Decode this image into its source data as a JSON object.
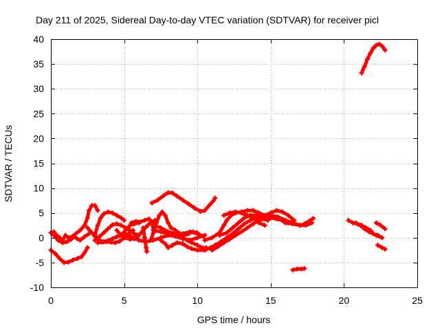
{
  "chart_data": {
    "type": "scatter",
    "title": "Day 211 of 2025, Sidereal Day-to-day VTEC variation (SDTVAR) for receiver picl",
    "xlabel": "GPS time / hours",
    "ylabel": "SDTVAR / TECUs",
    "xlim": [
      0,
      25
    ],
    "ylim": [
      -10,
      40
    ],
    "xticks": [
      0,
      5,
      10,
      15,
      20,
      25
    ],
    "yticks": [
      -10,
      -5,
      0,
      5,
      10,
      15,
      20,
      25,
      30,
      35,
      40
    ],
    "grid": true,
    "legend": "none",
    "marker_color": "#ff0000",
    "series": [
      {
        "points": [
          [
            0.0,
            -2.5
          ],
          [
            0.3,
            -3.2
          ],
          [
            0.6,
            -4.2
          ],
          [
            0.9,
            -5.0
          ],
          [
            1.2,
            -4.9
          ],
          [
            1.5,
            -4.5
          ],
          [
            1.8,
            -4.2
          ],
          [
            2.1,
            -3.8
          ],
          [
            2.3,
            -3.0
          ],
          [
            2.5,
            -2.0
          ]
        ]
      },
      {
        "points": [
          [
            0.0,
            1.0
          ],
          [
            0.2,
            1.2
          ],
          [
            0.4,
            0.5
          ],
          [
            0.6,
            0.0
          ],
          [
            0.8,
            -0.5
          ],
          [
            1.0,
            0.5
          ],
          [
            1.2,
            0.0
          ],
          [
            1.5,
            0.3
          ],
          [
            1.8,
            -0.2
          ],
          [
            2.0,
            -0.5
          ],
          [
            2.3,
            0.2
          ],
          [
            2.6,
            0.8
          ]
        ]
      },
      {
        "points": [
          [
            0.2,
            0.5
          ],
          [
            0.5,
            -0.5
          ],
          [
            0.8,
            -1.0
          ],
          [
            1.1,
            -0.8
          ],
          [
            1.4,
            -0.3
          ],
          [
            1.7,
            0.8
          ],
          [
            2.0,
            1.5
          ],
          [
            2.3,
            2.5
          ],
          [
            2.5,
            4.0
          ],
          [
            2.6,
            5.5
          ],
          [
            2.8,
            6.5
          ],
          [
            3.0,
            6.5
          ],
          [
            3.2,
            5.5
          ]
        ]
      },
      {
        "points": [
          [
            2.5,
            2.0
          ],
          [
            2.8,
            1.0
          ],
          [
            3.0,
            0.3
          ],
          [
            3.3,
            -0.5
          ],
          [
            3.6,
            -0.8
          ],
          [
            3.9,
            -0.6
          ],
          [
            4.2,
            -0.2
          ],
          [
            4.5,
            0.2
          ],
          [
            4.8,
            0.5
          ],
          [
            5.1,
            1.5
          ],
          [
            5.4,
            2.5
          ],
          [
            5.7,
            2.8
          ],
          [
            6.0,
            3.0
          ]
        ]
      },
      {
        "points": [
          [
            3.0,
            0.5
          ],
          [
            3.2,
            2.5
          ],
          [
            3.4,
            4.0
          ],
          [
            3.6,
            4.8
          ],
          [
            3.9,
            5.2
          ],
          [
            4.2,
            5.0
          ],
          [
            4.5,
            4.5
          ],
          [
            4.8,
            4.0
          ],
          [
            5.0,
            3.5
          ]
        ]
      },
      {
        "points": [
          [
            3.0,
            -0.5
          ],
          [
            3.3,
            0.2
          ],
          [
            3.6,
            1.0
          ],
          [
            3.9,
            1.8
          ],
          [
            4.2,
            2.6
          ],
          [
            4.5,
            2.8
          ],
          [
            4.8,
            2.5
          ],
          [
            5.1,
            2.0
          ],
          [
            5.4,
            1.5
          ],
          [
            5.7,
            0.8
          ],
          [
            6.0,
            0.5
          ]
        ]
      },
      {
        "points": [
          [
            3.2,
            -1.0
          ],
          [
            3.5,
            -0.9
          ],
          [
            3.8,
            -0.8
          ],
          [
            4.1,
            -0.9
          ],
          [
            4.4,
            -1.0
          ],
          [
            4.7,
            -0.7
          ],
          [
            5.0,
            0.0
          ],
          [
            5.3,
            0.8
          ],
          [
            5.6,
            1.5
          ]
        ]
      },
      {
        "points": [
          [
            4.5,
            1.5
          ],
          [
            4.8,
            0.5
          ],
          [
            5.1,
            0.0
          ],
          [
            5.4,
            -0.3
          ],
          [
            5.7,
            -0.2
          ],
          [
            6.0,
            0.5
          ],
          [
            6.3,
            1.5
          ],
          [
            6.6,
            2.5
          ],
          [
            6.9,
            3.2
          ],
          [
            7.1,
            3.5
          ]
        ]
      },
      {
        "points": [
          [
            5.5,
            3.0
          ],
          [
            5.8,
            3.3
          ],
          [
            6.1,
            3.2
          ],
          [
            6.4,
            3.5
          ],
          [
            6.7,
            3.8
          ],
          [
            6.9,
            3.0
          ],
          [
            7.0,
            1.5
          ]
        ]
      },
      {
        "points": [
          [
            6.3,
            2.0
          ],
          [
            6.4,
            0.0
          ],
          [
            6.5,
            -2.0
          ],
          [
            6.55,
            -2.8
          ]
        ]
      },
      {
        "points": [
          [
            6.8,
            -0.5
          ],
          [
            7.0,
            1.0
          ],
          [
            7.2,
            3.0
          ],
          [
            7.4,
            4.5
          ],
          [
            7.6,
            5.2
          ],
          [
            7.8,
            4.5
          ],
          [
            8.0,
            3.0
          ],
          [
            8.2,
            2.0
          ],
          [
            8.5,
            1.5
          ],
          [
            8.8,
            0.8
          ],
          [
            9.1,
            0.5
          ],
          [
            9.4,
            0.8
          ],
          [
            9.7,
            1.2
          ],
          [
            10.0,
            1.0
          ]
        ]
      },
      {
        "points": [
          [
            5.0,
            1.0
          ],
          [
            5.5,
            0.2
          ],
          [
            6.0,
            -0.5
          ],
          [
            6.5,
            -0.8
          ],
          [
            7.0,
            -0.5
          ],
          [
            7.5,
            0.0
          ],
          [
            8.0,
            0.5
          ],
          [
            8.5,
            0.3
          ],
          [
            9.0,
            -0.2
          ],
          [
            9.5,
            -0.5
          ],
          [
            10.0,
            0.0
          ],
          [
            10.5,
            0.5
          ]
        ]
      },
      {
        "points": [
          [
            7.5,
            -0.5
          ],
          [
            7.8,
            -1.2
          ],
          [
            8.0,
            -2.0
          ],
          [
            8.3,
            -1.5
          ],
          [
            8.6,
            -1.0
          ],
          [
            9.0,
            -1.2
          ],
          [
            9.3,
            -1.8
          ],
          [
            9.6,
            -2.2
          ],
          [
            10.0,
            -2.5
          ],
          [
            10.5,
            -2.5
          ],
          [
            10.9,
            -2.0
          ],
          [
            11.2,
            -1.5
          ]
        ]
      },
      {
        "points": [
          [
            7.0,
            1.5
          ],
          [
            7.5,
            1.2
          ],
          [
            8.0,
            0.8
          ],
          [
            8.5,
            0.5
          ],
          [
            9.0,
            0.0
          ],
          [
            9.3,
            -0.5
          ],
          [
            9.6,
            -1.0
          ],
          [
            10.0,
            -1.5
          ],
          [
            10.3,
            -2.0
          ],
          [
            10.6,
            -2.0
          ]
        ]
      },
      {
        "points": [
          [
            7.0,
            2.5
          ],
          [
            7.5,
            2.0
          ],
          [
            8.0,
            1.2
          ],
          [
            8.5,
            0.8
          ],
          [
            9.0,
            0.8
          ],
          [
            9.5,
            1.2
          ],
          [
            10.0,
            0.8
          ],
          [
            10.4,
            0.3
          ]
        ]
      },
      {
        "points": [
          [
            6.9,
            7.0
          ],
          [
            7.3,
            7.6
          ],
          [
            7.7,
            8.5
          ],
          [
            8.0,
            9.1
          ],
          [
            8.3,
            9.0
          ],
          [
            8.6,
            8.4
          ],
          [
            9.0,
            7.6
          ],
          [
            9.4,
            6.8
          ],
          [
            9.8,
            6.0
          ],
          [
            10.2,
            5.3
          ],
          [
            10.5,
            5.5
          ],
          [
            10.8,
            6.5
          ],
          [
            11.1,
            7.5
          ],
          [
            11.2,
            8.0
          ]
        ]
      },
      {
        "points": [
          [
            10.5,
            -0.5
          ],
          [
            11.0,
            0.0
          ],
          [
            11.5,
            1.0
          ],
          [
            11.8,
            2.5
          ],
          [
            12.0,
            3.5
          ],
          [
            12.3,
            4.5
          ],
          [
            12.6,
            5.0
          ],
          [
            13.0,
            5.2
          ],
          [
            13.4,
            5.5
          ],
          [
            13.8,
            5.5
          ],
          [
            14.2,
            5.0
          ],
          [
            14.6,
            4.5
          ],
          [
            15.0,
            5.0
          ],
          [
            15.4,
            5.5
          ],
          [
            15.8,
            5.2
          ],
          [
            16.2,
            4.5
          ],
          [
            16.6,
            3.5
          ]
        ]
      },
      {
        "points": [
          [
            11.0,
            -2.5
          ],
          [
            11.4,
            -1.8
          ],
          [
            11.8,
            -1.0
          ],
          [
            12.2,
            -0.3
          ],
          [
            12.6,
            0.5
          ],
          [
            13.0,
            1.2
          ],
          [
            13.4,
            2.0
          ],
          [
            13.8,
            2.8
          ],
          [
            14.2,
            3.5
          ],
          [
            14.6,
            3.8
          ],
          [
            15.0,
            4.0
          ],
          [
            15.4,
            3.8
          ],
          [
            15.8,
            3.5
          ],
          [
            16.2,
            3.0
          ]
        ]
      },
      {
        "points": [
          [
            11.2,
            -1.5
          ],
          [
            11.6,
            -0.8
          ],
          [
            12.0,
            0.0
          ],
          [
            12.4,
            0.8
          ],
          [
            12.8,
            1.8
          ],
          [
            13.2,
            2.8
          ],
          [
            13.6,
            3.5
          ],
          [
            14.0,
            4.0
          ],
          [
            14.4,
            4.3
          ],
          [
            14.8,
            4.0
          ]
        ]
      },
      {
        "points": [
          [
            11.5,
            0.5
          ],
          [
            12.0,
            1.0
          ],
          [
            12.4,
            2.0
          ],
          [
            12.8,
            3.0
          ],
          [
            13.2,
            4.0
          ],
          [
            13.6,
            4.5
          ],
          [
            14.0,
            4.5
          ],
          [
            14.4,
            4.0
          ],
          [
            14.8,
            3.5
          ]
        ]
      },
      {
        "points": [
          [
            11.8,
            4.5
          ],
          [
            12.2,
            5.0
          ],
          [
            12.6,
            5.2
          ],
          [
            13.0,
            5.0
          ],
          [
            13.4,
            4.5
          ],
          [
            13.8,
            4.0
          ],
          [
            14.2,
            3.0
          ],
          [
            14.6,
            2.5
          ]
        ]
      },
      {
        "points": [
          [
            14.5,
            4.0
          ],
          [
            15.0,
            4.5
          ],
          [
            15.5,
            4.2
          ],
          [
            16.0,
            3.5
          ],
          [
            16.5,
            3.0
          ],
          [
            17.0,
            2.5
          ],
          [
            17.4,
            2.5
          ],
          [
            17.8,
            3.0
          ]
        ]
      },
      {
        "points": [
          [
            15.5,
            4.0
          ],
          [
            16.0,
            3.0
          ],
          [
            16.5,
            2.8
          ],
          [
            17.0,
            2.5
          ],
          [
            17.3,
            2.8
          ],
          [
            17.6,
            3.3
          ],
          [
            17.9,
            3.9
          ]
        ]
      },
      {
        "points": [
          [
            16.5,
            -6.5
          ],
          [
            16.8,
            -6.3
          ],
          [
            17.1,
            -6.3
          ],
          [
            17.3,
            -6.2
          ]
        ]
      },
      {
        "points": [
          [
            20.3,
            3.5
          ],
          [
            20.6,
            3.0
          ],
          [
            20.9,
            2.8
          ],
          [
            21.2,
            2.5
          ],
          [
            21.5,
            2.0
          ],
          [
            21.8,
            1.5
          ],
          [
            22.0,
            0.8
          ],
          [
            22.2,
            0.5
          ],
          [
            22.4,
            0.3
          ],
          [
            22.6,
            0.0
          ]
        ]
      },
      {
        "points": [
          [
            20.8,
            3.0
          ],
          [
            21.1,
            2.5
          ],
          [
            21.4,
            1.8
          ],
          [
            21.7,
            1.2
          ],
          [
            22.0,
            0.8
          ],
          [
            22.3,
            0.5
          ]
        ]
      },
      {
        "points": [
          [
            22.2,
            3.0
          ],
          [
            22.5,
            2.5
          ],
          [
            22.8,
            1.8
          ]
        ]
      },
      {
        "points": [
          [
            22.3,
            -1.5
          ],
          [
            22.6,
            -2.0
          ],
          [
            22.8,
            -2.3
          ]
        ]
      },
      {
        "points": [
          [
            21.2,
            33.2
          ],
          [
            21.4,
            34.5
          ],
          [
            21.6,
            36.0
          ],
          [
            21.8,
            37.2
          ],
          [
            22.0,
            38.2
          ],
          [
            22.2,
            38.8
          ],
          [
            22.4,
            39.0
          ],
          [
            22.6,
            38.6
          ],
          [
            22.8,
            37.8
          ]
        ]
      }
    ]
  }
}
